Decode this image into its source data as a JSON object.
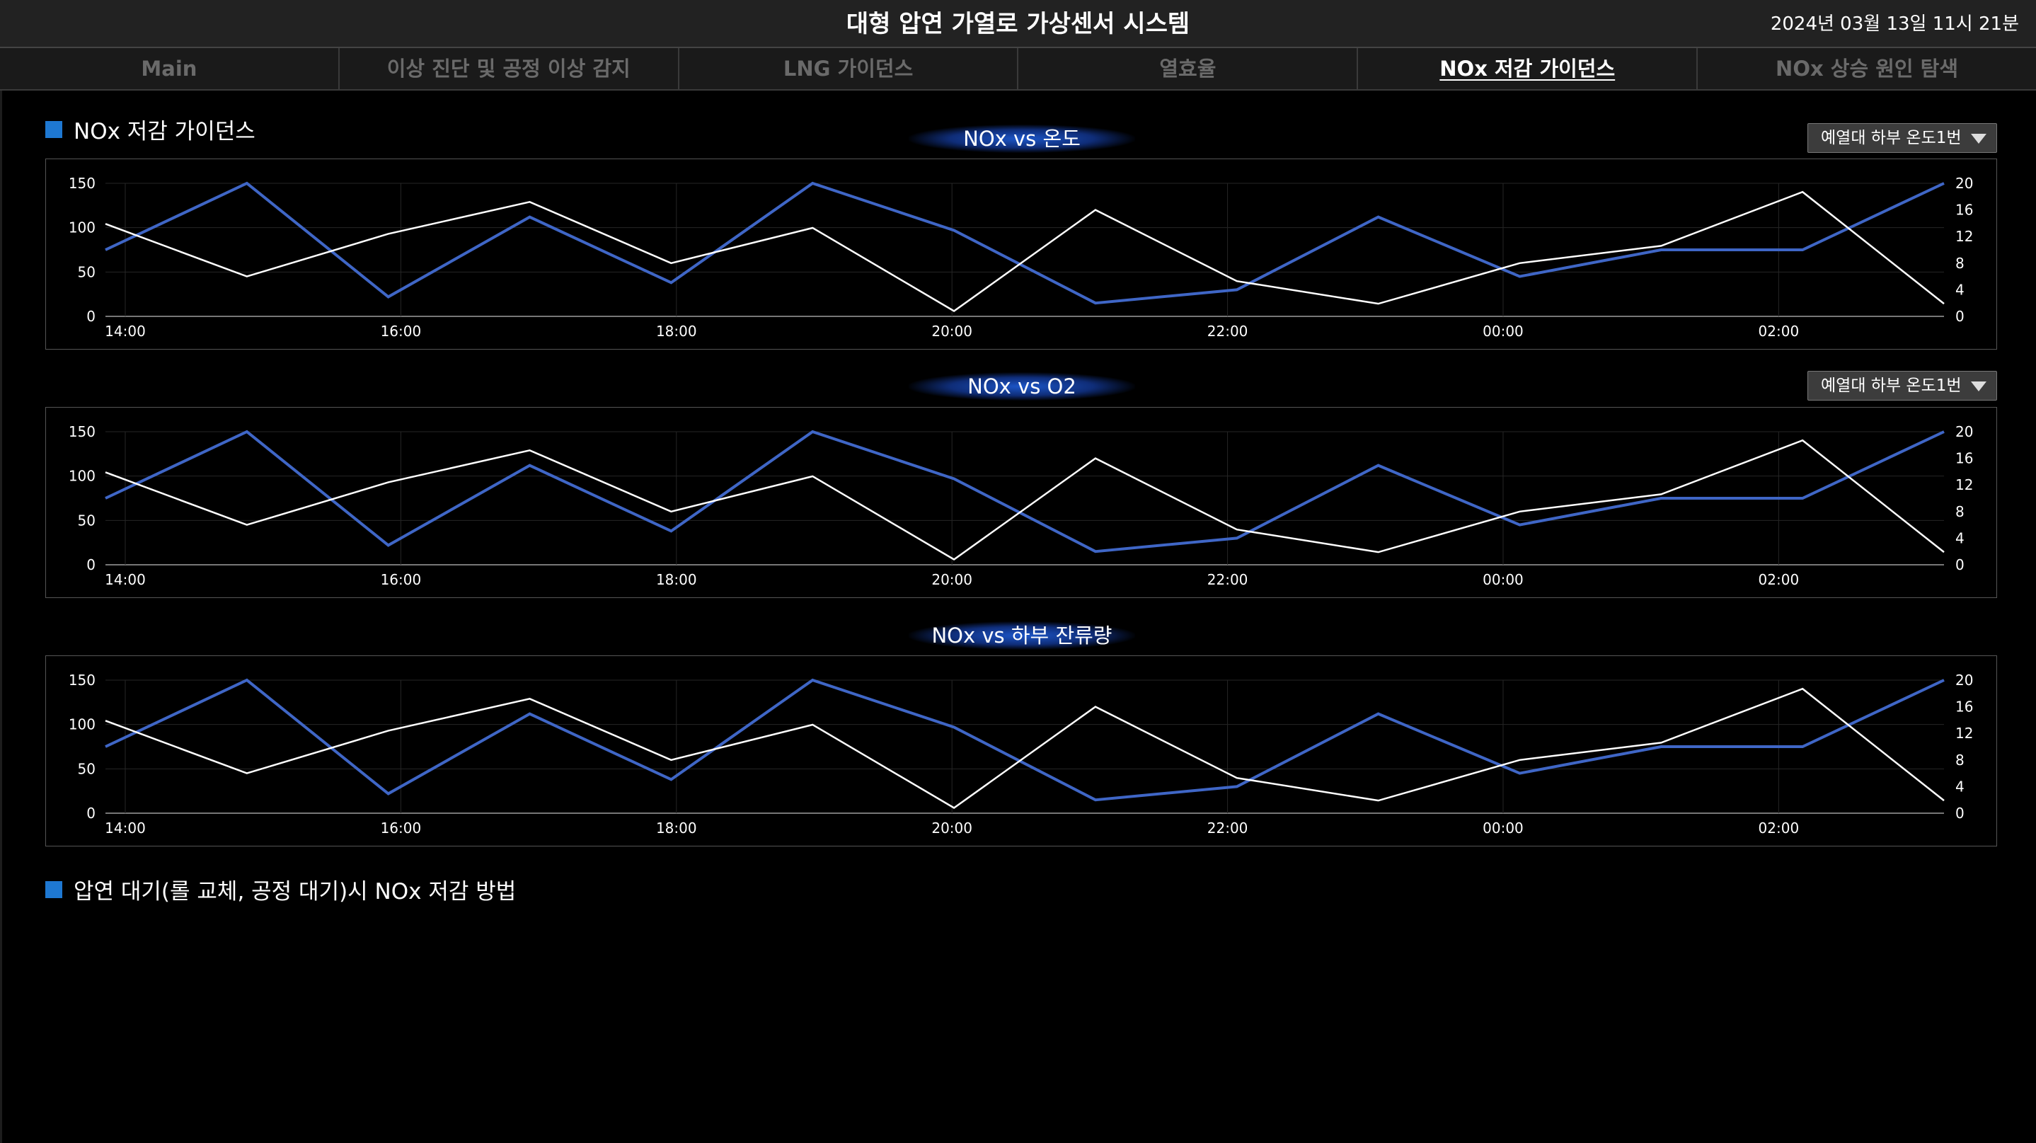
{
  "app": {
    "title": "대형 압연 가열로 가상센서 시스템",
    "datetime": "2024년 03월 13일 11시 21분"
  },
  "tabs": [
    {
      "label": "Main",
      "active": false
    },
    {
      "label": "이상 진단 및 공정 이상 감지",
      "active": false
    },
    {
      "label": "LNG 가이던스",
      "active": false
    },
    {
      "label": "열효율",
      "active": false
    },
    {
      "label": "NOx 저감 가이던스",
      "active": true
    },
    {
      "label": "NOx 상승 원인 탐색",
      "active": false
    }
  ],
  "sections": {
    "guidance": "NOx 저감 가이던스",
    "standby": "압연 대기(롤 교체, 공정 대기)시 NOx 저감 방법"
  },
  "dropdowns": {
    "chart1": "예열대 하부 온도1번",
    "chart2": "예열대 하부 온도1번"
  },
  "colors": {
    "accent": "#1e78d2",
    "series_blue": "#3f66c6",
    "series_white": "#ffffff",
    "background": "#000000"
  },
  "chart_data": [
    {
      "type": "line",
      "title": "NOx vs 온도",
      "x_ticks": [
        "14:00",
        "16:00",
        "18:00",
        "20:00",
        "22:00",
        "00:00",
        "02:00"
      ],
      "y_left_ticks": [
        "150",
        "100",
        "50",
        "0"
      ],
      "y_right_ticks": [
        "20",
        "16",
        "12",
        "8",
        "4",
        "0"
      ],
      "ylim_left": [
        0,
        150
      ],
      "ylim_right": [
        0,
        20
      ],
      "grid": true,
      "series": [
        {
          "axis": "left",
          "color": "#3f66c6",
          "values": [
            75,
            150,
            22,
            112,
            38,
            150,
            97,
            15,
            30,
            112,
            45,
            75,
            75,
            150
          ]
        },
        {
          "axis": "right",
          "color": "#ffffff",
          "values": [
            13.9,
            6,
            12.4,
            17.2,
            8,
            13.3,
            0.8,
            16,
            5.3,
            1.9,
            8,
            10.6,
            18.7,
            1.9
          ]
        }
      ]
    },
    {
      "type": "line",
      "title": "NOx vs O2",
      "x_ticks": [
        "14:00",
        "16:00",
        "18:00",
        "20:00",
        "22:00",
        "00:00",
        "02:00"
      ],
      "y_left_ticks": [
        "150",
        "100",
        "50",
        "0"
      ],
      "y_right_ticks": [
        "20",
        "16",
        "12",
        "8",
        "4",
        "0"
      ],
      "ylim_left": [
        0,
        150
      ],
      "ylim_right": [
        0,
        20
      ],
      "grid": true,
      "series": [
        {
          "axis": "left",
          "color": "#3f66c6",
          "values": [
            75,
            150,
            22,
            112,
            38,
            150,
            97,
            15,
            30,
            112,
            45,
            75,
            75,
            150
          ]
        },
        {
          "axis": "right",
          "color": "#ffffff",
          "values": [
            13.9,
            6,
            12.4,
            17.2,
            8,
            13.3,
            0.8,
            16,
            5.3,
            1.9,
            8,
            10.6,
            18.7,
            1.9
          ]
        }
      ]
    },
    {
      "type": "line",
      "title": "NOx vs 하부 잔류량",
      "x_ticks": [
        "14:00",
        "16:00",
        "18:00",
        "20:00",
        "22:00",
        "00:00",
        "02:00"
      ],
      "y_left_ticks": [
        "150",
        "100",
        "50",
        "0"
      ],
      "y_right_ticks": [
        "20",
        "16",
        "12",
        "8",
        "4",
        "0"
      ],
      "ylim_left": [
        0,
        150
      ],
      "ylim_right": [
        0,
        20
      ],
      "grid": true,
      "series": [
        {
          "axis": "left",
          "color": "#3f66c6",
          "values": [
            75,
            150,
            22,
            112,
            38,
            150,
            97,
            15,
            30,
            112,
            45,
            75,
            75,
            150
          ]
        },
        {
          "axis": "right",
          "color": "#ffffff",
          "values": [
            13.9,
            6,
            12.4,
            17.2,
            8,
            13.3,
            0.8,
            16,
            5.3,
            1.9,
            8,
            10.6,
            18.7,
            1.9
          ]
        }
      ]
    }
  ]
}
